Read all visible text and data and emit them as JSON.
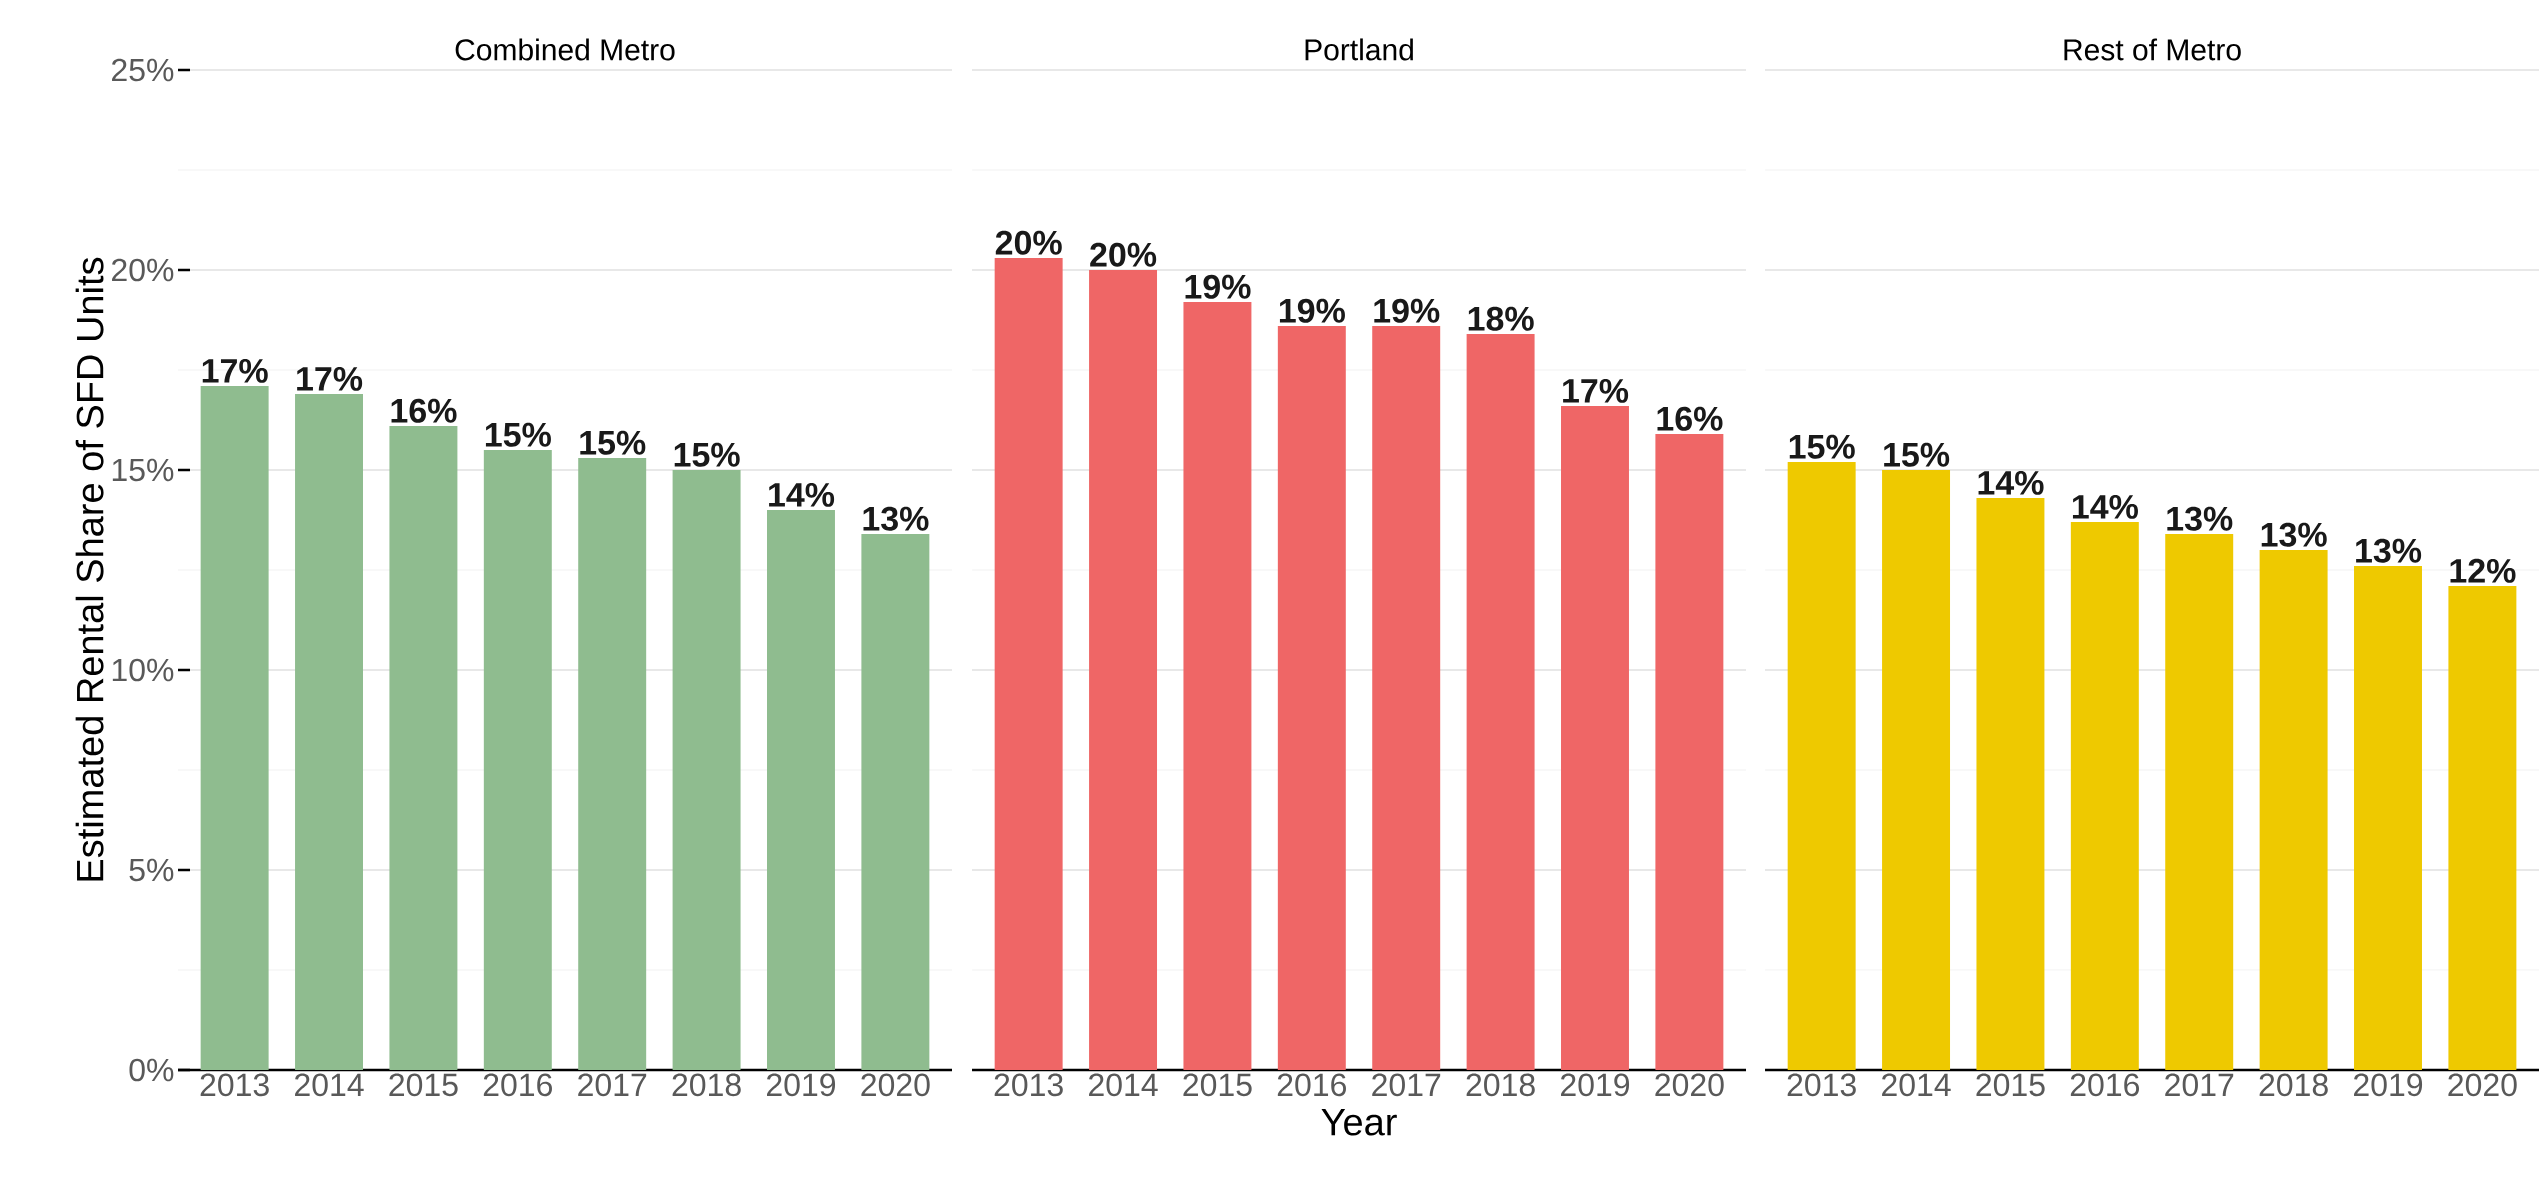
{
  "chart_data": [
    {
      "type": "bar",
      "title": "Combined Metro",
      "ylabel": "Estimated Rental Share of SFD Units",
      "categories": [
        "2013",
        "2014",
        "2015",
        "2016",
        "2017",
        "2018",
        "2019",
        "2020"
      ],
      "values": [
        17.1,
        16.9,
        16.1,
        15.5,
        15.3,
        15.0,
        14.0,
        13.4
      ],
      "value_labels": [
        "17%",
        "17%",
        "16%",
        "15%",
        "15%",
        "15%",
        "14%",
        "13%"
      ],
      "color": "#8fbc8f",
      "ylim": [
        0,
        25
      ],
      "yticks": [
        {
          "value": 0,
          "label": "0%"
        },
        {
          "value": 5,
          "label": "5%"
        },
        {
          "value": 10,
          "label": "10%"
        },
        {
          "value": 15,
          "label": "15%"
        },
        {
          "value": 20,
          "label": "20%"
        },
        {
          "value": 25,
          "label": "25%"
        }
      ],
      "grid": "y"
    },
    {
      "type": "bar",
      "title": "Portland",
      "xlabel": "Year",
      "categories": [
        "2013",
        "2014",
        "2015",
        "2016",
        "2017",
        "2018",
        "2019",
        "2020"
      ],
      "values": [
        20.3,
        20.0,
        19.2,
        18.6,
        18.6,
        18.4,
        16.6,
        15.9
      ],
      "value_labels": [
        "20%",
        "20%",
        "19%",
        "19%",
        "19%",
        "18%",
        "17%",
        "16%"
      ],
      "color": "#ef6666",
      "ylim": [
        0,
        25
      ],
      "yticks": [
        0,
        5,
        10,
        15,
        20,
        25
      ],
      "grid": "y",
      "tick_labels": "x"
    },
    {
      "type": "bar",
      "title": "Rest of Metro",
      "categories": [
        "2013",
        "2014",
        "2015",
        "2016",
        "2017",
        "2018",
        "2019",
        "2020"
      ],
      "values": [
        15.2,
        15.0,
        14.3,
        13.7,
        13.4,
        13.0,
        12.6,
        12.1
      ],
      "value_labels": [
        "15%",
        "15%",
        "14%",
        "14%",
        "13%",
        "13%",
        "13%",
        "12%"
      ],
      "color": "#eec900",
      "ylim": [
        0,
        25
      ],
      "yticks": [
        0,
        5,
        10,
        15,
        20,
        25
      ],
      "grid": "y",
      "tick_labels": "x"
    }
  ]
}
